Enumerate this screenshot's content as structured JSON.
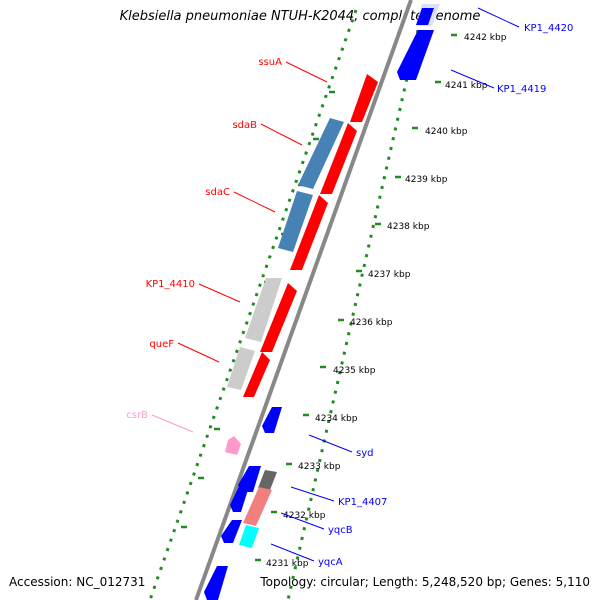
{
  "header": {
    "title": "Klebsiella pneumoniae NTUH-K2044, complete genome"
  },
  "footer": {
    "accession": "Accession: NC_012731",
    "topology": "Topology: circular; Length: 5,248,520 bp; Genes: 5,110"
  },
  "colors": {
    "backbone": "#888888",
    "tick": "#228b22",
    "forward_gene": "#ff0000",
    "reverse_gene": "#0000ff",
    "orf_gene": "#cccccc",
    "operon_gene": "#4682b4",
    "pseudo_gene": "#ff99cc",
    "trna_gene": "#00ffff",
    "salmon_gene": "#f08080",
    "grey_gene": "#666666"
  },
  "scale_labels": [
    "4242 kbp",
    "4241 kbp",
    "4240 kbp",
    "4239 kbp",
    "4238 kbp",
    "4237 kbp",
    "4236 kbp",
    "4235 kbp",
    "4234 kbp",
    "4233 kbp",
    "4232 kbp",
    "4231 kbp"
  ],
  "gene_labels": {
    "left": [
      "ssuA",
      "sdaB",
      "sdaC",
      "KP1_4410",
      "queF",
      "csrB"
    ],
    "right": [
      "KP1_4420",
      "KP1_4419",
      "syd",
      "KP1_4407",
      "yqcB",
      "yqcA"
    ]
  }
}
